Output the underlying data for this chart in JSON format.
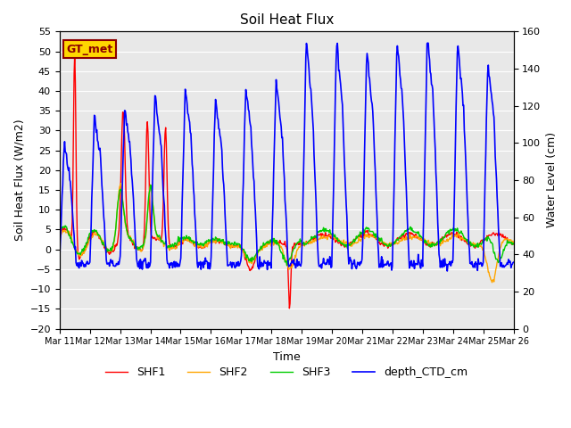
{
  "title": "Soil Heat Flux",
  "ylabel_left": "Soil Heat Flux (W/m2)",
  "ylabel_right": "Water Level (cm)",
  "xlabel": "Time",
  "ylim_left": [
    -20,
    55
  ],
  "ylim_right": [
    0,
    160
  ],
  "yticks_left": [
    -20,
    -15,
    -10,
    -5,
    0,
    5,
    10,
    15,
    20,
    25,
    30,
    35,
    40,
    45,
    50,
    55
  ],
  "yticks_right": [
    0,
    20,
    40,
    60,
    80,
    100,
    120,
    140,
    160
  ],
  "annotation_text": "GT_met",
  "annotation_color": "#8B0000",
  "annotation_bg": "#FFD700",
  "line_colors": {
    "SHF1": "#FF0000",
    "SHF2": "#FFA500",
    "SHF3": "#00CC00",
    "depth_CTD_cm": "#0000FF"
  },
  "line_widths": {
    "SHF1": 1.0,
    "SHF2": 1.0,
    "SHF3": 1.0,
    "depth_CTD_cm": 1.2
  },
  "x_tick_labels": [
    "Mar 11",
    "Mar 12",
    "Mar 13",
    "Mar 14",
    "Mar 15",
    "Mar 16",
    "Mar 17",
    "Mar 18",
    "Mar 19",
    "Mar 20",
    "Mar 21",
    "Mar 22",
    "Mar 23",
    "Mar 24",
    "Mar 25",
    "Mar 26"
  ],
  "background_color": "#E8E8E8",
  "grid_color": "#FFFFFF",
  "fig_bg": "#FFFFFF"
}
